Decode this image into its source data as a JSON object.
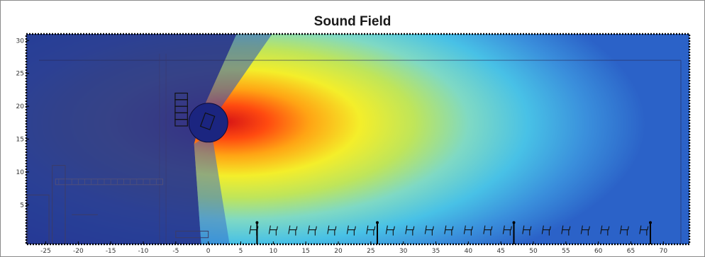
{
  "chart_data": {
    "type": "heatmap",
    "title": "Sound Field",
    "xlabel": "",
    "ylabel": "",
    "xlim": [
      -28,
      74
    ],
    "ylim": [
      -1,
      31
    ],
    "x_ticks": [
      -25,
      -20,
      -15,
      -10,
      -5,
      0,
      5,
      10,
      15,
      20,
      25,
      30,
      35,
      40,
      45,
      50,
      55,
      60,
      65,
      70
    ],
    "y_ticks": [
      5,
      10,
      15,
      20,
      25,
      30
    ],
    "colormap": "jet",
    "grid": false,
    "source": {
      "x": 0,
      "y": 17.5,
      "radius": 3
    },
    "peak_level_at": {
      "x": 8,
      "y": 15
    },
    "speaker_array": {
      "x": -4.5,
      "y_min": 17,
      "y_max": 22
    },
    "left_stand_level_y": 8.5,
    "seat_row_y": 1.2,
    "seat_x": [
      7,
      10,
      13,
      16,
      19,
      22,
      25,
      28,
      31,
      34,
      37,
      40,
      43,
      46,
      49,
      52,
      55,
      58,
      61,
      64,
      67
    ],
    "marker_posts_x": [
      7.5,
      26,
      47,
      68
    ]
  }
}
